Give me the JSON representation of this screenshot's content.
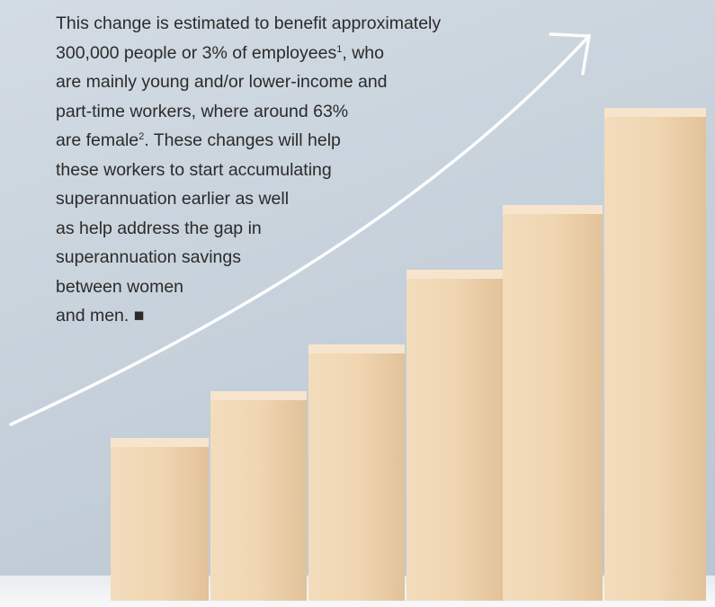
{
  "text": {
    "lines": [
      [
        {
          "text": "This change is estimated to benefit approximately"
        }
      ],
      [
        {
          "text": "300,000 people or 3% of employees"
        },
        {
          "text": "1",
          "sup": true
        },
        {
          "text": ", who"
        }
      ],
      [
        {
          "text": "are mainly young and/or lower-income and"
        }
      ],
      [
        {
          "text": "part-time workers, where around 63%"
        }
      ],
      [
        {
          "text": "are female"
        },
        {
          "text": "2",
          "sup": true
        },
        {
          "text": ". These changes will help"
        }
      ],
      [
        {
          "text": "these workers to start accumulating"
        }
      ],
      [
        {
          "text": "superannuation earlier as well"
        }
      ],
      [
        {
          "text": "as help address the gap in"
        }
      ],
      [
        {
          "text": "superannuation savings"
        }
      ],
      [
        {
          "text": "between women"
        }
      ],
      [
        {
          "text": "and men. ■"
        }
      ]
    ]
  }
}
